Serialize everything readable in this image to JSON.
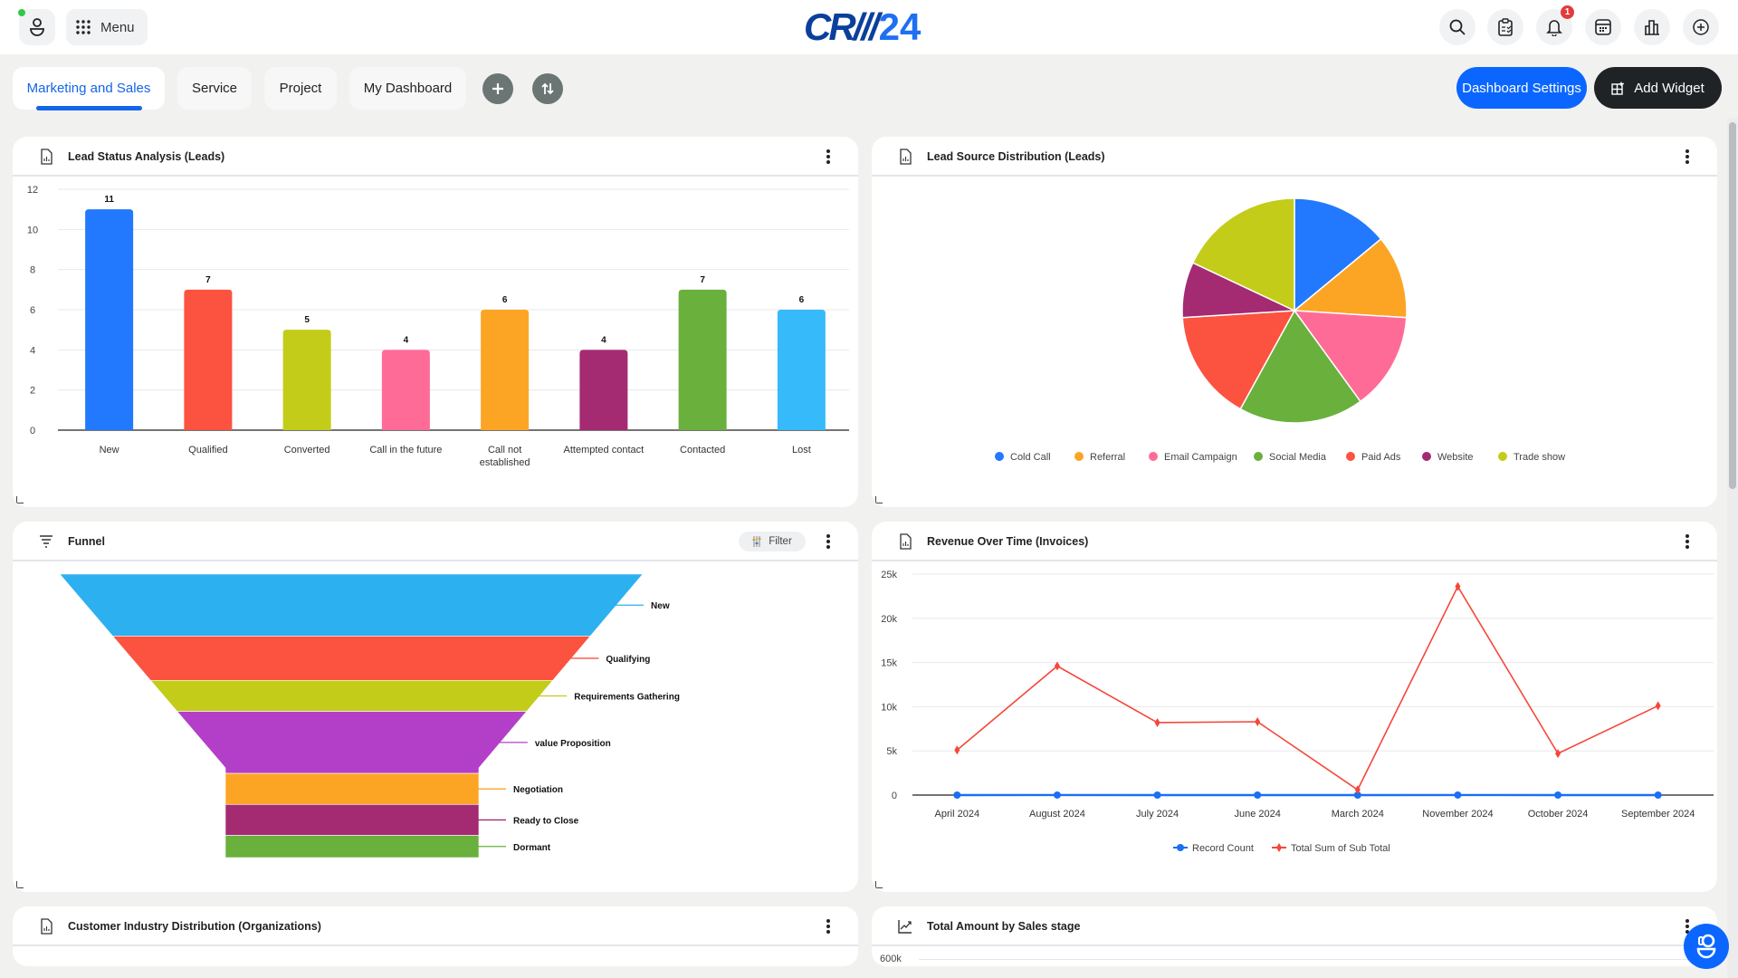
{
  "header": {
    "menu_label": "Menu",
    "logo_text_a": "CR///",
    "logo_text_b": "24",
    "notification_count": "1",
    "icons": [
      "user-icon",
      "grid-menu-icon",
      "search-icon",
      "clipboard-icon",
      "bell-icon",
      "calendar-icon",
      "bar-chart-icon",
      "plus-circle-icon"
    ]
  },
  "tabs": [
    {
      "label": "Marketing and Sales",
      "active": true
    },
    {
      "label": "Service",
      "active": false
    },
    {
      "label": "Project",
      "active": false
    },
    {
      "label": "My Dashboard",
      "active": false
    }
  ],
  "toolbar": {
    "dashboard_settings_label": "Dashboard Settings",
    "add_widget_label": "Add Widget"
  },
  "colors": {
    "accent": "#0a66ff",
    "dark": "#202326"
  },
  "widgets": {
    "lead_status": {
      "title": "Lead Status Analysis (Leads)"
    },
    "lead_source": {
      "title": "Lead Source Distribution (Leads)"
    },
    "funnel": {
      "title": "Funnel",
      "filter_label": "Filter"
    },
    "revenue": {
      "title": "Revenue Over Time (Invoices)"
    },
    "industry": {
      "title": "Customer Industry Distribution (Organizations)"
    },
    "sales_stage": {
      "title": "Total Amount by Sales stage",
      "first_tick": "600k"
    }
  },
  "chart_data": [
    {
      "type": "bar",
      "title": "Lead Status Analysis (Leads)",
      "categories": [
        "New",
        "Qualified",
        "Converted",
        "Call in the future",
        "Call not established",
        "Attempted contact",
        "Contacted",
        "Lost"
      ],
      "values": [
        11,
        7,
        5,
        4,
        6,
        4,
        7,
        6
      ],
      "colors": [
        "#2279fd",
        "#fc5240",
        "#c3cc19",
        "#ff6b97",
        "#fca524",
        "#a42a72",
        "#6ab03c",
        "#36baf9"
      ],
      "yticks": [
        "0",
        "2",
        "4",
        "6",
        "8",
        "10",
        "12"
      ],
      "ylim": [
        0,
        12
      ],
      "grid": true
    },
    {
      "type": "pie",
      "title": "Lead Source Distribution (Leads)",
      "labels": [
        "Cold Call",
        "Referral",
        "Email Campaign",
        "Social Media",
        "Paid Ads",
        "Website",
        "Trade show"
      ],
      "values": [
        7,
        6,
        7,
        9,
        8,
        4,
        9
      ],
      "colors": [
        "#2279fd",
        "#fca524",
        "#ff6b97",
        "#6ab03c",
        "#fc5240",
        "#a42a72",
        "#c3cc19"
      ],
      "legend": "bottom"
    },
    {
      "type": "funnel",
      "title": "Funnel",
      "labels": [
        "New",
        "Qualifying",
        "Requirements Gathering",
        "value Proposition",
        "Negotiation",
        "Ready to Close",
        "Dormant"
      ],
      "values": [
        7,
        5,
        3.5,
        7,
        3.5,
        3.5,
        2.5
      ],
      "colors": [
        "#2cb0ef",
        "#fc5240",
        "#c3cc19",
        "#b33fc8",
        "#fca524",
        "#a42a72",
        "#6ab03c"
      ]
    },
    {
      "type": "line",
      "title": "Revenue Over Time (Invoices)",
      "categories": [
        "April 2024",
        "August 2024",
        "July 2024",
        "June 2024",
        "March 2024",
        "November 2024",
        "October 2024",
        "September 2024"
      ],
      "series": [
        {
          "name": "Record Count",
          "values": [
            1,
            2,
            1,
            1,
            1,
            2,
            1,
            1
          ],
          "color": "#1a6ff5"
        },
        {
          "name": "Total Sum of Sub Total",
          "values": [
            5100,
            14600,
            8200,
            8300,
            600,
            23600,
            4700,
            10100
          ],
          "color": "#f5473a"
        }
      ],
      "yticks": [
        "0",
        "5k",
        "10k",
        "15k",
        "20k",
        "25k"
      ],
      "ylim": [
        0,
        25000
      ],
      "legend": "bottom",
      "grid": true
    }
  ]
}
